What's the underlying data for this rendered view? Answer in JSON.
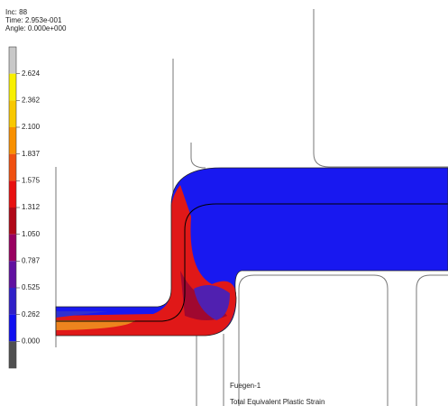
{
  "header": {
    "increment": "Inc:  88",
    "time": "Time:  2.953e-001",
    "angle": "Angle:  0.000e+000"
  },
  "legend": {
    "labels": [
      "2.624",
      "2.362",
      "2.100",
      "1.837",
      "1.575",
      "1.312",
      "1.050",
      "0.787",
      "0.525",
      "0.262",
      "0.000"
    ],
    "colors": [
      "#c8c8c8",
      "#f8f000",
      "#f8c800",
      "#f89000",
      "#f05010",
      "#e81010",
      "#b00818",
      "#980060",
      "#6010a0",
      "#3020c8",
      "#1010f0",
      "#505050"
    ]
  },
  "footer": {
    "job": "Fuegen-1",
    "quantity": "Total Equivalent Plastic Strain"
  }
}
